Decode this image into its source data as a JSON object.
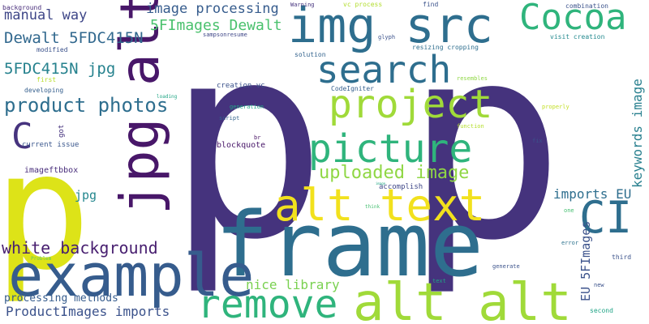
{
  "word_cloud": {
    "background": "#ffffff",
    "palette": {
      "dark_purple": "#45337d",
      "blue": "#2e6e8e",
      "teal": "#24878e",
      "green": "#2fb47c",
      "light_green": "#8fd744",
      "yellow_green": "#cae11f",
      "yellow": "#f2e11d",
      "deep_purple": "#481769",
      "indigo": "#3f4788"
    },
    "words": [
      {
        "text": "p",
        "color": "#45337d"
      },
      {
        "text": "p",
        "color": "#45337d"
      },
      {
        "text": "frame",
        "color": "#2e6e8e"
      },
      {
        "text": "p",
        "color": "#dde318"
      },
      {
        "text": "img src",
        "color": "#2e6e8e"
      },
      {
        "text": "example",
        "color": "#365c8d"
      },
      {
        "text": "jpg alt",
        "color": "#481769"
      },
      {
        "text": "alt alt",
        "color": "#a0da39"
      },
      {
        "text": "alt text",
        "color": "#f2e11d"
      },
      {
        "text": "Cocoa",
        "color": "#2fb47c"
      },
      {
        "text": "project",
        "color": "#a0da39"
      },
      {
        "text": "search",
        "color": "#2e6e8e"
      },
      {
        "text": "picture",
        "color": "#2fb47c"
      },
      {
        "text": "remove",
        "color": "#2fb47c"
      },
      {
        "text": "CI",
        "color": "#2e6e8e"
      },
      {
        "text": "C",
        "color": "#46337e"
      },
      {
        "text": "product photos",
        "color": "#2e6e8e"
      },
      {
        "text": "uploaded image",
        "color": "#8fd744"
      },
      {
        "text": "white background",
        "color": "#481f70"
      },
      {
        "text": "Dewalt 5FDC415N",
        "color": "#31688e"
      },
      {
        "text": "5FDC415N jpg",
        "color": "#26828e"
      },
      {
        "text": "5FImages Dewalt",
        "color": "#4ac16d"
      },
      {
        "text": "image processing",
        "color": "#365c8d"
      },
      {
        "text": "manual way",
        "color": "#3f4788"
      },
      {
        "text": "keywords image",
        "color": "#277f8e"
      },
      {
        "text": "imports EU",
        "color": "#2e6e8e"
      },
      {
        "text": "EU 5FImages",
        "color": "#3b528b"
      },
      {
        "text": "nice library",
        "color": "#7ad151"
      },
      {
        "text": "ProductImages imports",
        "color": "#3b528b"
      },
      {
        "text": "processing methods",
        "color": "#365c8d"
      },
      {
        "text": "jpg",
        "color": "#24878e"
      },
      {
        "text": "imageftbbox",
        "color": "#472c7a"
      },
      {
        "text": "current issue",
        "color": "#39568c"
      },
      {
        "text": "accomplish",
        "color": "#3f4788"
      },
      {
        "text": "blockquote",
        "color": "#481769"
      },
      {
        "text": "creation vc",
        "color": "#3b528b"
      },
      {
        "text": "CodeIgniter",
        "color": "#355f8d"
      },
      {
        "text": "solution",
        "color": "#33638d"
      },
      {
        "text": "resizing cropping",
        "color": "#2e6e8e"
      },
      {
        "text": "visit creation",
        "color": "#23898e"
      },
      {
        "text": "combination",
        "color": "#3b528b"
      },
      {
        "text": "Warning",
        "color": "#46337e"
      },
      {
        "text": "vc process",
        "color": "#b2dd2d"
      },
      {
        "text": "find",
        "color": "#3b528b"
      },
      {
        "text": "modified",
        "color": "#3b528b"
      },
      {
        "text": "background",
        "color": "#472c7a"
      },
      {
        "text": "developing",
        "color": "#355f8d"
      },
      {
        "text": "first",
        "color": "#b8de29"
      },
      {
        "text": "got",
        "color": "#46337e"
      },
      {
        "text": "loading",
        "color": "#21a685"
      },
      {
        "text": "generation",
        "color": "#20a486"
      },
      {
        "text": "script",
        "color": "#33638d"
      },
      {
        "text": "br",
        "color": "#471164"
      },
      {
        "text": "glyph",
        "color": "#3b528b"
      },
      {
        "text": "sampsonresume",
        "color": "#3f4788"
      },
      {
        "text": "resembles",
        "color": "#8fd744"
      },
      {
        "text": "function",
        "color": "#b5de2b"
      },
      {
        "text": "properly",
        "color": "#c2df23"
      },
      {
        "text": "fix",
        "color": "#3b528b"
      },
      {
        "text": "think",
        "color": "#44bf70"
      },
      {
        "text": "image",
        "color": "#22a884"
      },
      {
        "text": "one",
        "color": "#44bf70"
      },
      {
        "text": "error",
        "color": "#2c728e"
      },
      {
        "text": "third",
        "color": "#3b528b"
      },
      {
        "text": "generate",
        "color": "#3b528b"
      },
      {
        "text": "new",
        "color": "#3b528b"
      },
      {
        "text": "text",
        "color": "#20a486"
      },
      {
        "text": "second",
        "color": "#20a486"
      },
      {
        "text": "Problem",
        "color": "#5ec962"
      }
    ]
  }
}
